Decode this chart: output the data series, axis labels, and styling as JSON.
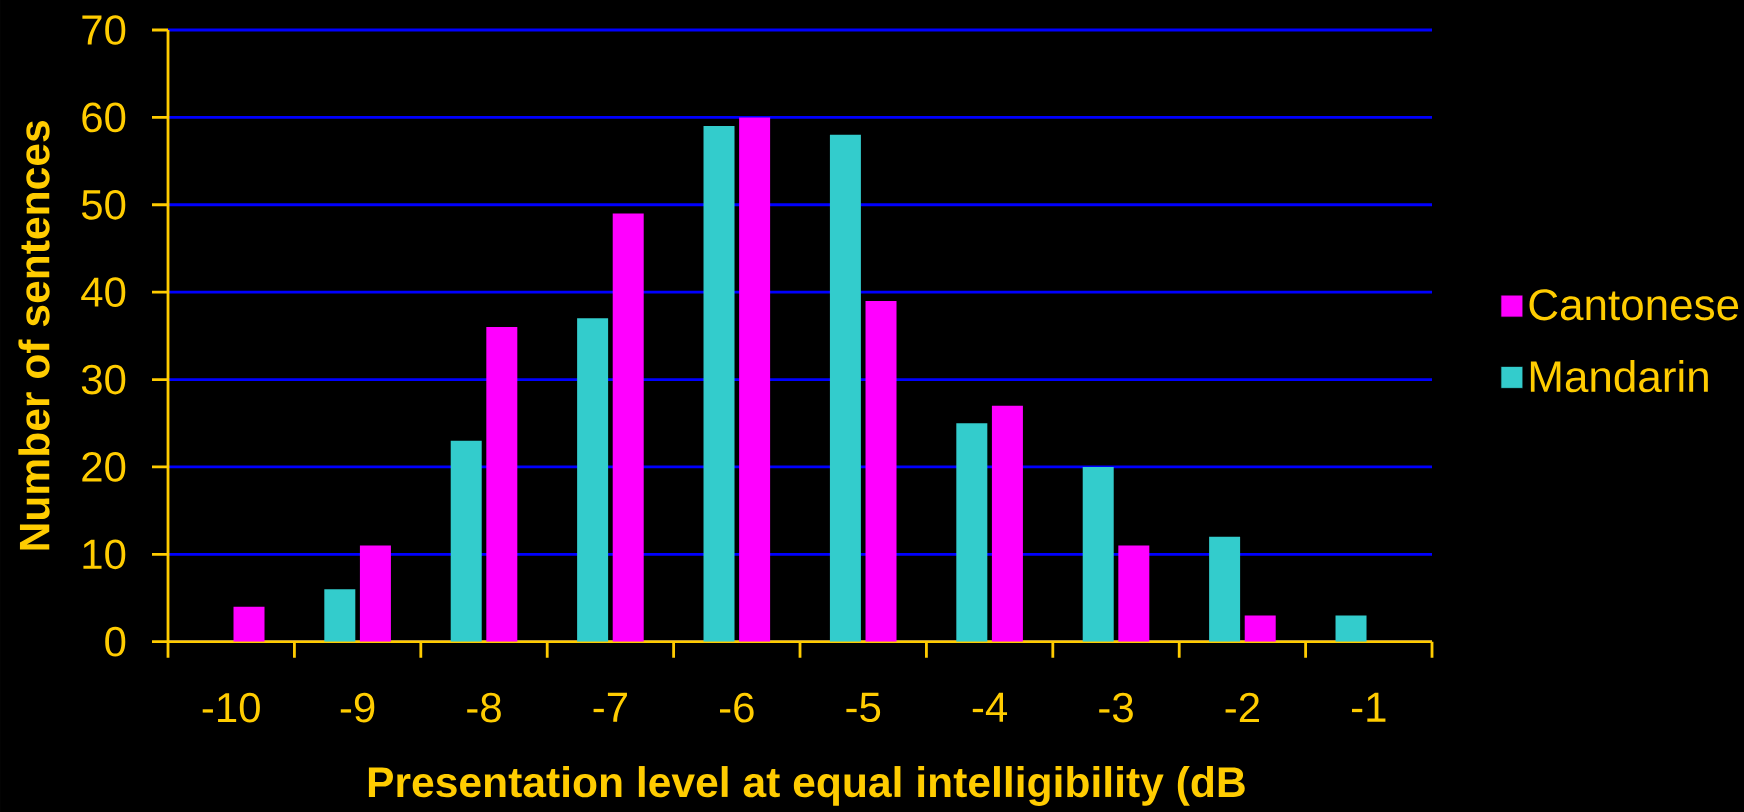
{
  "chart_data": {
    "type": "bar",
    "xlabel": "Presentation level at equal intelligibility (dB",
    "ylabel": "Number of sentences",
    "categories": [
      "-10",
      "-9",
      "-8",
      "-7",
      "-6",
      "-5",
      "-4",
      "-3",
      "-2",
      "-1"
    ],
    "series": [
      {
        "name": "Mandarin",
        "color": "#33cccc",
        "values": [
          0,
          6,
          23,
          37,
          59,
          58,
          25,
          20,
          12,
          3
        ]
      },
      {
        "name": "Cantonese",
        "color": "#ff00ff",
        "values": [
          4,
          11,
          36,
          49,
          60,
          39,
          27,
          11,
          3,
          0
        ]
      }
    ],
    "ylim": [
      0,
      70
    ],
    "yticks": [
      0,
      10,
      20,
      30,
      40,
      50,
      60,
      70
    ],
    "grid": "y",
    "legend": "right"
  }
}
